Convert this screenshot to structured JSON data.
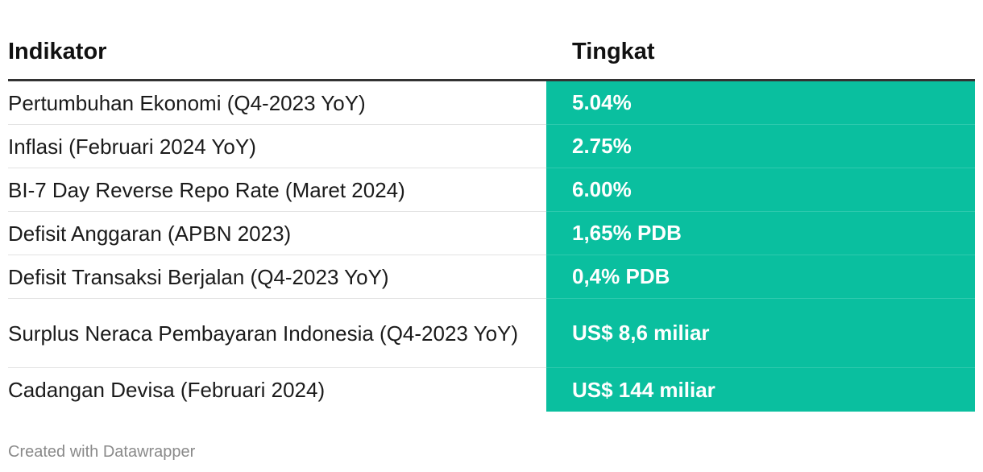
{
  "chart_data": {
    "type": "table",
    "columns": [
      "Indikator",
      "Tingkat"
    ],
    "rows": [
      {
        "indicator": "Pertumbuhan Ekonomi (Q4-2023 YoY)",
        "rate": "5.04%"
      },
      {
        "indicator": "Inflasi (Februari 2024 YoY)",
        "rate": "2.75%"
      },
      {
        "indicator": "BI-7 Day Reverse Repo Rate (Maret 2024)",
        "rate": "6.00%"
      },
      {
        "indicator": "Defisit Anggaran (APBN 2023)",
        "rate": "1,65% PDB"
      },
      {
        "indicator": "Defisit Transaksi Berjalan (Q4-2023 YoY)",
        "rate": "0,4% PDB"
      },
      {
        "indicator": "Surplus Neraca Pembayaran Indonesia (Q4-2023 YoY)",
        "rate": "US$ 8,6 miliar"
      },
      {
        "indicator": "Cadangan Devisa (Februari 2024)",
        "rate": "US$ 144 miliar"
      }
    ],
    "highlight_color": "#0abf9f"
  },
  "footer": {
    "credit": "Created with Datawrapper"
  }
}
